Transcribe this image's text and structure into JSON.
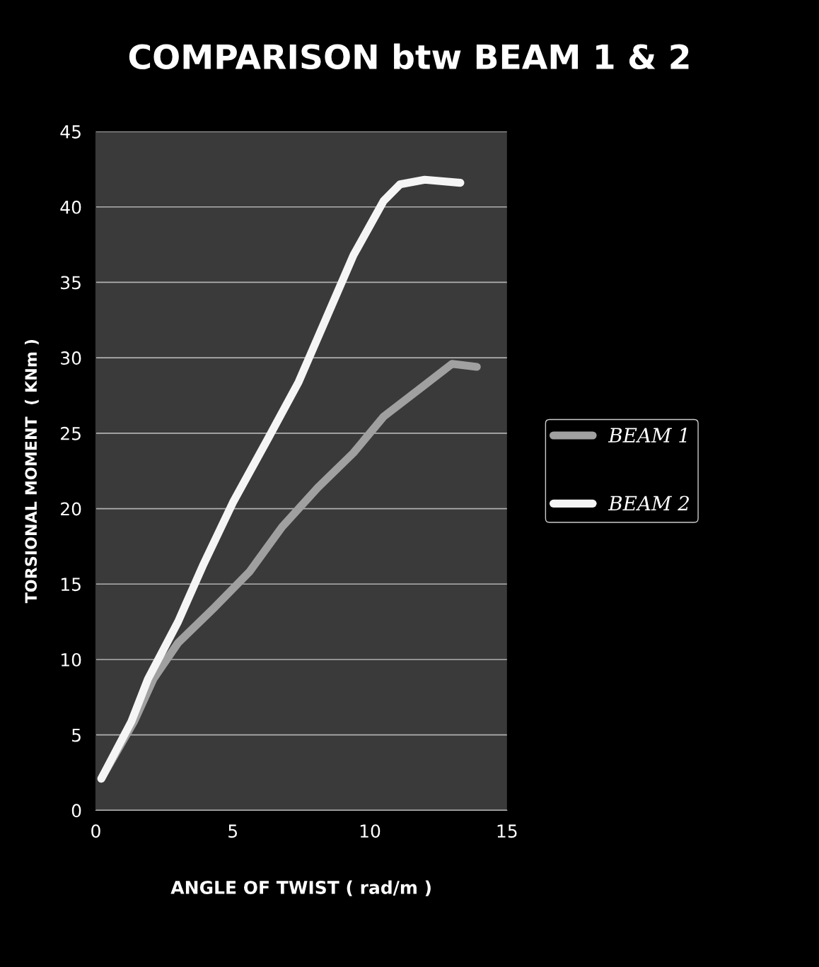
{
  "chart_data": {
    "type": "line",
    "title": "COMPARISON btw BEAM 1 & 2",
    "xlabel": "ANGLE OF TWIST ( rad/m )",
    "ylabel": "TORSIONAL MOMENT  ( KNm )",
    "series": [
      {
        "name": "BEAM 1",
        "color": "#a0a0a0",
        "x": [
          0.2,
          1.4,
          2.1,
          3.0,
          4.3,
          5.6,
          6.8,
          8.1,
          9.4,
          10.5,
          12.0,
          13.0,
          13.9
        ],
        "values": [
          2.1,
          5.9,
          8.7,
          11.1,
          13.4,
          15.8,
          18.8,
          21.4,
          23.7,
          26.1,
          28.2,
          29.6,
          29.4
        ]
      },
      {
        "name": "BEAM 2",
        "color": "#f5f5f5",
        "x": [
          0.2,
          1.3,
          1.9,
          3.0,
          3.9,
          5.0,
          6.3,
          7.4,
          8.4,
          9.4,
          10.5,
          11.1,
          12.0,
          13.3
        ],
        "values": [
          2.1,
          5.9,
          8.7,
          12.5,
          16.2,
          20.4,
          24.7,
          28.4,
          32.6,
          36.8,
          40.4,
          41.5,
          41.8,
          41.6
        ]
      }
    ],
    "xlim": [
      0,
      15
    ],
    "xticks": [
      0,
      5,
      10,
      15
    ],
    "ylim": [
      0,
      45
    ],
    "yticks": [
      0,
      5,
      10,
      15,
      20,
      25,
      30,
      35,
      40,
      45
    ],
    "grid": "y",
    "legend": "right",
    "marker": "none",
    "line_style": "solid"
  }
}
